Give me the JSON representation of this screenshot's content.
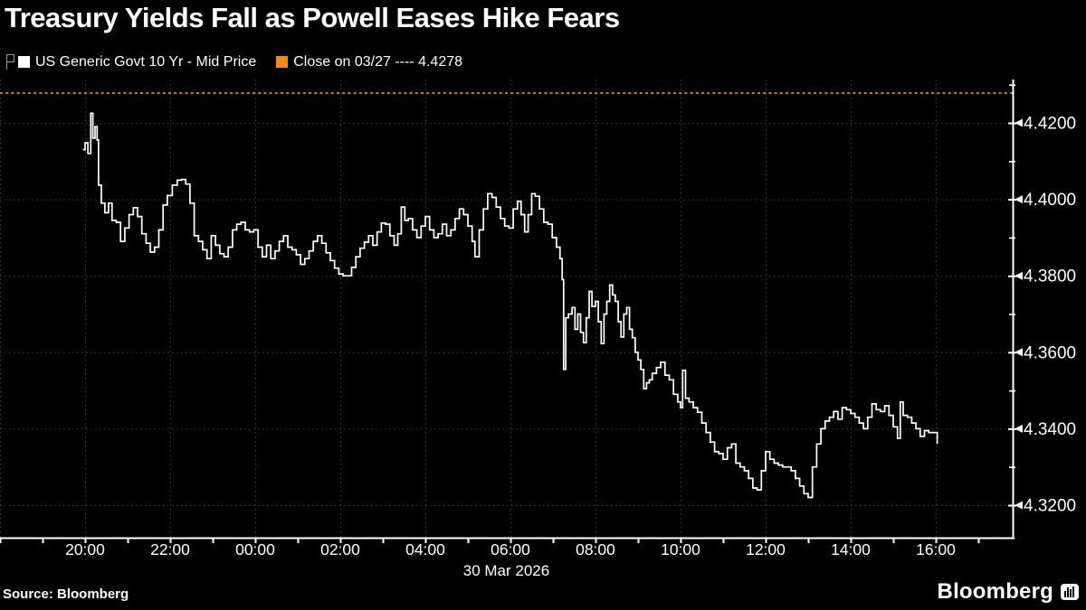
{
  "title": "Treasury Yields Fall as Powell Eases Hike Fears",
  "legend": {
    "marker_icon": "flag-annotation-icon",
    "series1": {
      "swatch_color": "#ffffff",
      "label": "US Generic Govt 10 Yr - Mid Price"
    },
    "series2": {
      "swatch_color": "#f28c0e",
      "label": "Close on 03/27 ---- 4.4278"
    }
  },
  "footer": {
    "source": "Source: Bloomberg",
    "brand": "Bloomberg"
  },
  "colors": {
    "background": "#000000",
    "series_line": "#ffffff",
    "reference_line": "#c27a14",
    "grid": "#3f3f3f",
    "axis": "#ffffff",
    "text": "#ffffff"
  },
  "chart_data": {
    "type": "line",
    "title": "Treasury Yields Fall as Powell Eases Hike Fears",
    "x_axis": {
      "labels": [
        "20:00",
        "22:00",
        "00:00",
        "02:00",
        "04:00",
        "06:00",
        "08:00",
        "10:00",
        "12:00",
        "14:00",
        "16:00"
      ],
      "date_label": "30 Mar 2026",
      "minor_tick_every_hours": 1,
      "grid": true
    },
    "y_axis": {
      "side": "right",
      "ticks": [
        4.42,
        4.4,
        4.38,
        4.36,
        4.34,
        4.32
      ],
      "minor_tick_step": 0.01,
      "decimals": 4,
      "range_top": 4.4315,
      "range_bottom": 4.3115,
      "grid": true
    },
    "reference_line": {
      "name": "Close on 03/27",
      "value": 4.4278,
      "style": "dashed"
    },
    "series": [
      {
        "name": "US Generic Govt 10 Yr - Mid Price",
        "color": "#ffffff",
        "interpolation": "step-after",
        "points": [
          [
            "19:57",
            4.413
          ],
          [
            "20:00",
            4.4148
          ],
          [
            "20:04",
            4.412
          ],
          [
            "20:08",
            4.4225
          ],
          [
            "20:11",
            4.416
          ],
          [
            "20:14",
            4.419
          ],
          [
            "20:17",
            4.4155
          ],
          [
            "20:19",
            4.4037
          ],
          [
            "20:23",
            4.399
          ],
          [
            "20:28",
            4.3965
          ],
          [
            "20:33",
            4.399
          ],
          [
            "20:38",
            4.3945
          ],
          [
            "20:44",
            4.394
          ],
          [
            "20:50",
            4.389
          ],
          [
            "20:56",
            4.3925
          ],
          [
            "21:02",
            4.396
          ],
          [
            "21:08",
            4.3978
          ],
          [
            "21:14",
            4.3955
          ],
          [
            "21:20",
            4.391
          ],
          [
            "21:26",
            4.3885
          ],
          [
            "21:32",
            4.3862
          ],
          [
            "21:38",
            4.3875
          ],
          [
            "21:44",
            4.392
          ],
          [
            "21:50",
            4.3985
          ],
          [
            "21:56",
            4.401
          ],
          [
            "22:03",
            4.4037
          ],
          [
            "22:10",
            4.405
          ],
          [
            "22:16",
            4.4052
          ],
          [
            "22:22",
            4.404
          ],
          [
            "22:28",
            4.399
          ],
          [
            "22:34",
            4.3905
          ],
          [
            "22:40",
            4.389
          ],
          [
            "22:46",
            4.3868
          ],
          [
            "22:52",
            4.3845
          ],
          [
            "22:58",
            4.3905
          ],
          [
            "23:04",
            4.388
          ],
          [
            "23:10",
            4.3858
          ],
          [
            "23:16",
            4.385
          ],
          [
            "23:22",
            4.3875
          ],
          [
            "23:28",
            4.392
          ],
          [
            "23:34",
            4.3935
          ],
          [
            "23:40",
            4.394
          ],
          [
            "23:46",
            4.392
          ],
          [
            "23:52",
            4.3915
          ],
          [
            "23:58",
            4.392
          ],
          [
            "00:04",
            4.3875
          ],
          [
            "00:10",
            4.385
          ],
          [
            "00:16",
            4.388
          ],
          [
            "00:22",
            4.3845
          ],
          [
            "00:28",
            4.3865
          ],
          [
            "00:34",
            4.389
          ],
          [
            "00:40",
            4.3905
          ],
          [
            "00:46",
            4.3875
          ],
          [
            "00:52",
            4.3868
          ],
          [
            "00:58",
            4.3855
          ],
          [
            "01:04",
            4.383
          ],
          [
            "01:10",
            4.3845
          ],
          [
            "01:16",
            4.3865
          ],
          [
            "01:22",
            4.389
          ],
          [
            "01:28",
            4.3905
          ],
          [
            "01:34",
            4.3885
          ],
          [
            "01:40",
            4.386
          ],
          [
            "01:46",
            4.384
          ],
          [
            "01:52",
            4.382
          ],
          [
            "01:58",
            4.3805
          ],
          [
            "02:04",
            4.38
          ],
          [
            "02:10",
            4.38
          ],
          [
            "02:16",
            4.3822
          ],
          [
            "02:22",
            4.385
          ],
          [
            "02:28",
            4.3872
          ],
          [
            "02:34",
            4.3888
          ],
          [
            "02:40",
            4.3905
          ],
          [
            "02:46",
            4.388
          ],
          [
            "02:52",
            4.3915
          ],
          [
            "02:58",
            4.3938
          ],
          [
            "03:04",
            4.3935
          ],
          [
            "03:10",
            4.3905
          ],
          [
            "03:16",
            4.388
          ],
          [
            "03:21",
            4.391
          ],
          [
            "03:26",
            4.398
          ],
          [
            "03:31",
            4.3945
          ],
          [
            "03:36",
            4.395
          ],
          [
            "03:42",
            4.392
          ],
          [
            "03:48",
            4.39
          ],
          [
            "03:54",
            4.393
          ],
          [
            "04:00",
            4.3955
          ],
          [
            "04:06",
            4.392
          ],
          [
            "04:12",
            4.39
          ],
          [
            "04:18",
            4.391
          ],
          [
            "04:24",
            4.3935
          ],
          [
            "04:30",
            4.3905
          ],
          [
            "04:36",
            4.392
          ],
          [
            "04:42",
            4.395
          ],
          [
            "04:48",
            4.3975
          ],
          [
            "04:54",
            4.396
          ],
          [
            "05:00",
            4.393
          ],
          [
            "05:06",
            4.389
          ],
          [
            "05:10",
            4.385
          ],
          [
            "05:16",
            4.392
          ],
          [
            "05:22",
            4.3975
          ],
          [
            "05:28",
            4.4015
          ],
          [
            "05:34",
            4.4005
          ],
          [
            "05:40",
            4.398
          ],
          [
            "05:46",
            4.395
          ],
          [
            "05:52",
            4.393
          ],
          [
            "05:58",
            4.3925
          ],
          [
            "06:04",
            4.3975
          ],
          [
            "06:10",
            4.3995
          ],
          [
            "06:15",
            4.396
          ],
          [
            "06:20",
            4.3915
          ],
          [
            "06:25",
            4.396
          ],
          [
            "06:30",
            4.4015
          ],
          [
            "06:35",
            4.4008
          ],
          [
            "06:41",
            4.3975
          ],
          [
            "06:47",
            4.394
          ],
          [
            "06:53",
            4.3935
          ],
          [
            "06:59",
            4.39
          ],
          [
            "07:05",
            4.3875
          ],
          [
            "07:10",
            4.3845
          ],
          [
            "07:13",
            4.379
          ],
          [
            "07:15",
            4.3555
          ],
          [
            "07:18",
            4.369
          ],
          [
            "07:22",
            4.37
          ],
          [
            "07:27",
            4.3717
          ],
          [
            "07:31",
            4.366
          ],
          [
            "07:35",
            4.37
          ],
          [
            "07:39",
            4.3652
          ],
          [
            "07:43",
            4.3625
          ],
          [
            "07:47",
            4.369
          ],
          [
            "07:51",
            4.3759
          ],
          [
            "07:55",
            4.372
          ],
          [
            "08:00",
            4.3733
          ],
          [
            "08:04",
            4.368
          ],
          [
            "08:08",
            4.3623
          ],
          [
            "08:12",
            4.37
          ],
          [
            "08:16",
            4.3733
          ],
          [
            "08:20",
            4.3776
          ],
          [
            "08:24",
            4.375
          ],
          [
            "08:28",
            4.3733
          ],
          [
            "08:32",
            4.368
          ],
          [
            "08:36",
            4.364
          ],
          [
            "08:40",
            4.37
          ],
          [
            "08:44",
            4.3717
          ],
          [
            "08:48",
            4.366
          ],
          [
            "08:52",
            4.3638
          ],
          [
            "08:56",
            4.36
          ],
          [
            "09:00",
            4.358
          ],
          [
            "09:04",
            4.3555
          ],
          [
            "09:08",
            4.3505
          ],
          [
            "09:12",
            4.352
          ],
          [
            "09:16",
            4.3528
          ],
          [
            "09:20",
            4.3545
          ],
          [
            "09:26",
            4.356
          ],
          [
            "09:32",
            4.3574
          ],
          [
            "09:38",
            4.354
          ],
          [
            "09:44",
            4.3528
          ],
          [
            "09:50",
            4.349
          ],
          [
            "09:56",
            4.347
          ],
          [
            "10:00",
            4.3455
          ],
          [
            "10:03",
            4.3553
          ],
          [
            "10:07",
            4.348
          ],
          [
            "10:12",
            4.347
          ],
          [
            "10:18",
            4.3455
          ],
          [
            "10:24",
            4.3443
          ],
          [
            "10:30",
            4.3415
          ],
          [
            "10:36",
            4.339
          ],
          [
            "10:42",
            4.3365
          ],
          [
            "10:48",
            4.334
          ],
          [
            "10:54",
            4.3335
          ],
          [
            "11:00",
            4.332
          ],
          [
            "11:06",
            4.335
          ],
          [
            "11:12",
            4.336
          ],
          [
            "11:18",
            4.331
          ],
          [
            "11:24",
            4.33
          ],
          [
            "11:30",
            4.329
          ],
          [
            "11:36",
            4.327
          ],
          [
            "11:42",
            4.3245
          ],
          [
            "11:48",
            4.324
          ],
          [
            "11:54",
            4.329
          ],
          [
            "12:00",
            4.334
          ],
          [
            "12:06",
            4.332
          ],
          [
            "12:12",
            4.331
          ],
          [
            "12:18",
            4.3305
          ],
          [
            "12:24",
            4.33
          ],
          [
            "12:30",
            4.33
          ],
          [
            "12:36",
            4.329
          ],
          [
            "12:42",
            4.327
          ],
          [
            "12:48",
            4.325
          ],
          [
            "12:54",
            4.323
          ],
          [
            "13:00",
            4.322
          ],
          [
            "13:06",
            4.33
          ],
          [
            "13:12",
            4.336
          ],
          [
            "13:18",
            4.34
          ],
          [
            "13:24",
            4.342
          ],
          [
            "13:30",
            4.343
          ],
          [
            "13:36",
            4.3445
          ],
          [
            "13:42",
            4.3425
          ],
          [
            "13:48",
            4.3455
          ],
          [
            "13:54",
            4.345
          ],
          [
            "14:00",
            4.344
          ],
          [
            "14:06",
            4.343
          ],
          [
            "14:12",
            4.3415
          ],
          [
            "14:18",
            4.34
          ],
          [
            "14:24",
            4.343
          ],
          [
            "14:30",
            4.3465
          ],
          [
            "14:36",
            4.345
          ],
          [
            "14:42",
            4.3445
          ],
          [
            "14:48",
            4.346
          ],
          [
            "14:54",
            4.3435
          ],
          [
            "15:00",
            4.3405
          ],
          [
            "15:06",
            4.3375
          ],
          [
            "15:10",
            4.347
          ],
          [
            "15:14",
            4.3435
          ],
          [
            "15:20",
            4.343
          ],
          [
            "15:26",
            4.3415
          ],
          [
            "15:32",
            4.34
          ],
          [
            "15:38",
            4.338
          ],
          [
            "15:44",
            4.3395
          ],
          [
            "15:50",
            4.339
          ],
          [
            "15:56",
            4.339
          ],
          [
            "16:02",
            4.336
          ]
        ]
      }
    ]
  }
}
